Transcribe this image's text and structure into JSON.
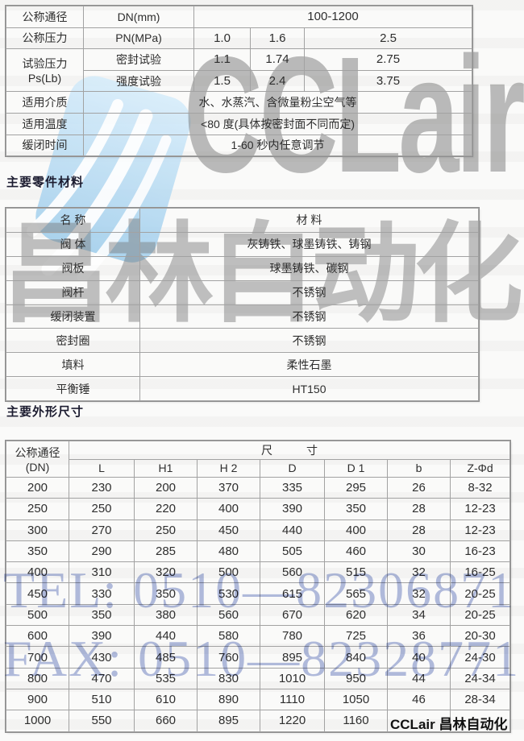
{
  "sections": {
    "materials_title": "主要零件材料",
    "dimensions_title": "主要外形尺寸"
  },
  "spec": {
    "r1": {
      "label": "公称通径",
      "sub": "DN(mm)",
      "v": "100-1200"
    },
    "r2": {
      "label": "公称压力",
      "sub": "PN(MPa)",
      "v1": "1.0",
      "v2": "1.6",
      "v3": "2.5"
    },
    "r3": {
      "label_line1": "试验压力",
      "label_line2": "Ps(Lb)",
      "sub": "密封试验",
      "v1": "1.1",
      "v2": "1.74",
      "v3": "2.75"
    },
    "r4": {
      "sub": "强度试验",
      "v1": "1.5",
      "v2": "2.4",
      "v3": "3.75"
    },
    "r5": {
      "label": "适用介质",
      "v": "水、水蒸汽、含微量粉尘空气等"
    },
    "r6": {
      "label": "适用温度",
      "v": "<80 度(具体按密封面不同而定)"
    },
    "r7": {
      "label": "缓闭时间",
      "v": "1-60 秒内任意调节"
    }
  },
  "materials_table": {
    "headers": [
      "名 称",
      "材 料"
    ],
    "rows": [
      [
        "阀 体",
        "灰铸铁、球墨铸铁、铸钢"
      ],
      [
        "阀板",
        "球墨铸铁、碳钢"
      ],
      [
        "阀杆",
        "不锈钢"
      ],
      [
        "缓闭装置",
        "不锈钢"
      ],
      [
        "密封圈",
        "不锈钢"
      ],
      [
        "填料",
        "柔性石墨"
      ],
      [
        "平衡锤",
        "HT150"
      ]
    ]
  },
  "dimensions_table": {
    "corner_line1": "公称通径",
    "corner_line2": "(DN)",
    "group_header": "尺　　　寸",
    "columns": [
      "L",
      "H1",
      "H 2",
      "D",
      "D 1",
      "b",
      "Z-Φd"
    ],
    "rows": [
      [
        "200",
        "230",
        "200",
        "370",
        "335",
        "295",
        "26",
        "8-32"
      ],
      [
        "250",
        "250",
        "220",
        "400",
        "390",
        "350",
        "28",
        "12-23"
      ],
      [
        "300",
        "270",
        "250",
        "450",
        "440",
        "400",
        "28",
        "12-23"
      ],
      [
        "350",
        "290",
        "285",
        "480",
        "505",
        "460",
        "30",
        "16-23"
      ],
      [
        "400",
        "310",
        "320",
        "500",
        "560",
        "515",
        "32",
        "16-25"
      ],
      [
        "450",
        "330",
        "350",
        "530",
        "615",
        "565",
        "32",
        "20-25"
      ],
      [
        "500",
        "350",
        "380",
        "560",
        "670",
        "620",
        "34",
        "20-25"
      ],
      [
        "600",
        "390",
        "440",
        "580",
        "780",
        "725",
        "36",
        "20-30"
      ],
      [
        "700",
        "430",
        "485",
        "760",
        "895",
        "840",
        "40",
        "24-30"
      ],
      [
        "800",
        "470",
        "535",
        "830",
        "1010",
        "950",
        "44",
        "24-34"
      ],
      [
        "900",
        "510",
        "610",
        "890",
        "1110",
        "1050",
        "46",
        "28-34"
      ],
      [
        "1000",
        "550",
        "660",
        "895",
        "1220",
        "1160",
        "",
        ""
      ]
    ]
  },
  "watermarks": {
    "logo_text": "CCLair",
    "brand_cn": "昌林自动化",
    "tel": "TEL: 0510—82306871",
    "fax": "FAX: 0510—82328771",
    "footer_brand": "CCLair 昌林自动化",
    "colors": {
      "logo_blue": "#aed4f0",
      "watermark_gray": "#777777",
      "tel_fax_blue": "#7486c7",
      "footer_black": "#111111"
    }
  }
}
